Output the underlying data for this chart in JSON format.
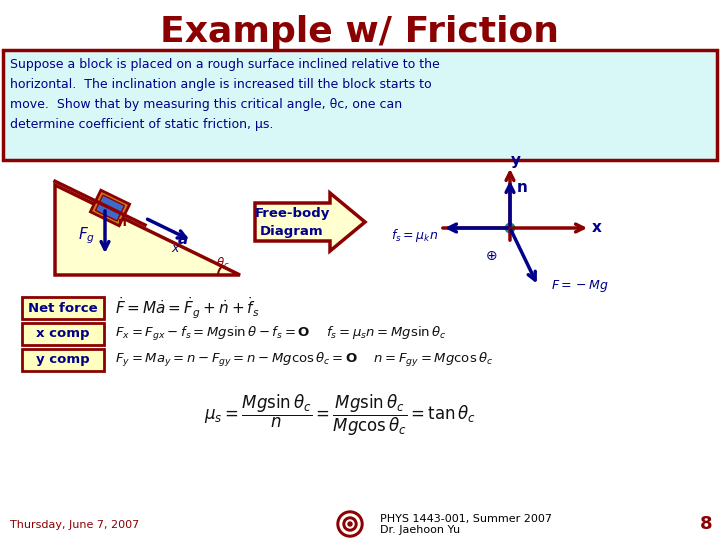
{
  "title": "Example w/ Friction",
  "title_color": "#8B0000",
  "title_fontsize": 26,
  "bg_color": "#FFFFFF",
  "problem_text_line1": "Suppose a block is placed on a rough surface inclined relative to the",
  "problem_text_line2": "horizontal.  The inclination angle is increased till the block starts to",
  "problem_text_line3": "move.  Show that by measuring this critical angle, θc, one can",
  "problem_text_line4": "determine coefficient of static friction, μs.",
  "problem_box_bg": "#D8F8F8",
  "problem_box_border": "#8B0000",
  "net_force_label": "Net force",
  "xcomp_label": "x comp",
  "ycomp_label": "y comp",
  "footer_date": "Thursday, June 7, 2007",
  "footer_course": "PHYS 1443-001, Summer 2007",
  "footer_instructor": "Dr. Jaehoon Yu",
  "footer_page": "8",
  "label_box_bg": "#FFFFC0",
  "label_box_border": "#8B0000",
  "dark_red": "#8B0000",
  "dark_blue": "#00008B",
  "navy": "#000080",
  "footer_date_color": "#8B0000",
  "footer_color": "#000000",
  "triangle_fill": "#FFFFD0",
  "arrow_fill": "#FFFFD0"
}
